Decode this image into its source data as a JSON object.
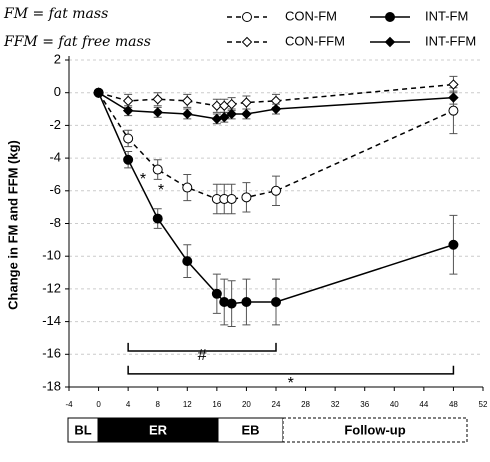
{
  "chart_data": {
    "type": "line",
    "notes": [
      "FM = fat mass",
      "FFM = fat free mass"
    ],
    "ylabel": "Change in FM and FFM (kg)",
    "x": [
      0,
      4,
      8,
      12,
      16,
      17,
      18,
      20,
      24,
      48
    ],
    "series": [
      {
        "name": "CON-FM",
        "color": "#000000",
        "dashed": true,
        "marker": "circle",
        "filled": false,
        "values": [
          0,
          -2.8,
          -4.7,
          -5.8,
          -6.5,
          -6.5,
          -6.5,
          -6.4,
          -6.0,
          -1.1
        ],
        "errors": [
          0,
          0.5,
          0.6,
          0.8,
          0.9,
          0.9,
          0.9,
          0.9,
          0.9,
          1.4
        ]
      },
      {
        "name": "INT-FM",
        "color": "#000000",
        "dashed": false,
        "marker": "circle",
        "filled": true,
        "values": [
          0,
          -4.1,
          -7.7,
          -10.3,
          -12.3,
          -12.8,
          -12.9,
          -12.8,
          -12.8,
          -9.3
        ],
        "errors": [
          0,
          0.5,
          0.6,
          1.0,
          1.2,
          1.4,
          1.4,
          1.4,
          1.4,
          1.8
        ]
      },
      {
        "name": "CON-FFM",
        "color": "#000000",
        "dashed": true,
        "marker": "diamond",
        "filled": false,
        "values": [
          0,
          -0.5,
          -0.4,
          -0.5,
          -0.8,
          -0.8,
          -0.7,
          -0.6,
          -0.5,
          0.5
        ],
        "errors": [
          0,
          0.4,
          0.4,
          0.4,
          0.4,
          0.4,
          0.4,
          0.4,
          0.4,
          0.5
        ]
      },
      {
        "name": "INT-FFM",
        "color": "#000000",
        "dashed": false,
        "marker": "diamond",
        "filled": true,
        "values": [
          0,
          -1.1,
          -1.2,
          -1.3,
          -1.6,
          -1.5,
          -1.3,
          -1.3,
          -1.0,
          -0.3
        ],
        "errors": [
          0,
          0.3,
          0.3,
          0.3,
          0.3,
          0.3,
          0.3,
          0.3,
          0.3,
          0.4
        ]
      }
    ],
    "xlim": [
      -4,
      52
    ],
    "xticks": [
      -4,
      0,
      4,
      8,
      12,
      16,
      20,
      24,
      28,
      32,
      36,
      40,
      44,
      48,
      52
    ],
    "ylim": [
      -18,
      2
    ],
    "yticks": [
      2,
      0,
      -2,
      -4,
      -6,
      -8,
      -10,
      -12,
      -14,
      -16,
      -18
    ],
    "grid": true,
    "legend": "top-right",
    "annotations": [
      "*",
      "*",
      "#",
      "*"
    ],
    "phases": [
      "BL",
      "ER",
      "EB",
      "Follow-up"
    ]
  }
}
